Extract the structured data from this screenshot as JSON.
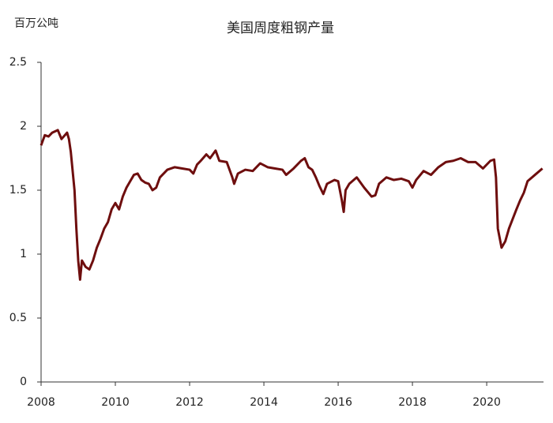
{
  "chart_data": {
    "type": "line",
    "title": "美国周度粗钢产量",
    "y_label": "百万公吨",
    "x": [
      2008.0,
      2008.1,
      2008.2,
      2008.3,
      2008.45,
      2008.55,
      2008.7,
      2008.75,
      2008.8,
      2008.9,
      2008.95,
      2009.0,
      2009.05,
      2009.1,
      2009.2,
      2009.3,
      2009.4,
      2009.5,
      2009.6,
      2009.7,
      2009.8,
      2009.9,
      2010.0,
      2010.1,
      2010.2,
      2010.3,
      2010.4,
      2010.5,
      2010.6,
      2010.7,
      2010.8,
      2010.9,
      2011.0,
      2011.1,
      2011.2,
      2011.4,
      2011.6,
      2011.8,
      2012.0,
      2012.1,
      2012.2,
      2012.3,
      2012.45,
      2012.55,
      2012.7,
      2012.8,
      2013.0,
      2013.15,
      2013.2,
      2013.3,
      2013.5,
      2013.7,
      2013.9,
      2014.1,
      2014.3,
      2014.5,
      2014.6,
      2014.8,
      2015.0,
      2015.1,
      2015.2,
      2015.3,
      2015.4,
      2015.5,
      2015.6,
      2015.7,
      2015.9,
      2016.0,
      2016.1,
      2016.15,
      2016.2,
      2016.3,
      2016.5,
      2016.7,
      2016.9,
      2017.0,
      2017.1,
      2017.3,
      2017.5,
      2017.7,
      2017.9,
      2018.0,
      2018.1,
      2018.3,
      2018.5,
      2018.7,
      2018.9,
      2019.1,
      2019.3,
      2019.5,
      2019.7,
      2019.9,
      2020.1,
      2020.2,
      2020.25,
      2020.3,
      2020.4,
      2020.5,
      2020.6,
      2020.8,
      2020.9,
      2021.0,
      2021.1,
      2021.3,
      2021.5
    ],
    "series": [
      {
        "color": "#6e0e0e",
        "values": [
          1.85,
          1.93,
          1.92,
          1.95,
          1.97,
          1.9,
          1.95,
          1.9,
          1.8,
          1.5,
          1.2,
          0.95,
          0.8,
          0.95,
          0.9,
          0.88,
          0.95,
          1.05,
          1.12,
          1.2,
          1.25,
          1.35,
          1.4,
          1.35,
          1.45,
          1.52,
          1.57,
          1.62,
          1.63,
          1.58,
          1.56,
          1.55,
          1.5,
          1.52,
          1.6,
          1.66,
          1.68,
          1.67,
          1.66,
          1.63,
          1.7,
          1.73,
          1.78,
          1.75,
          1.81,
          1.73,
          1.72,
          1.6,
          1.55,
          1.63,
          1.66,
          1.65,
          1.71,
          1.68,
          1.67,
          1.66,
          1.62,
          1.67,
          1.73,
          1.75,
          1.68,
          1.66,
          1.6,
          1.53,
          1.47,
          1.55,
          1.58,
          1.57,
          1.42,
          1.33,
          1.5,
          1.55,
          1.6,
          1.52,
          1.45,
          1.46,
          1.55,
          1.6,
          1.58,
          1.59,
          1.57,
          1.52,
          1.58,
          1.65,
          1.62,
          1.68,
          1.72,
          1.73,
          1.75,
          1.72,
          1.72,
          1.67,
          1.73,
          1.74,
          1.6,
          1.2,
          1.05,
          1.1,
          1.2,
          1.35,
          1.42,
          1.48,
          1.57,
          1.62,
          1.67
        ]
      }
    ],
    "xlim": [
      2008,
      2021.53
    ],
    "xticks": [
      2008,
      2010,
      2012,
      2014,
      2016,
      2018,
      2020
    ],
    "ylim": [
      0,
      2.5
    ],
    "yticks": [
      0,
      0.5,
      1,
      1.5,
      2,
      2.5
    ]
  }
}
